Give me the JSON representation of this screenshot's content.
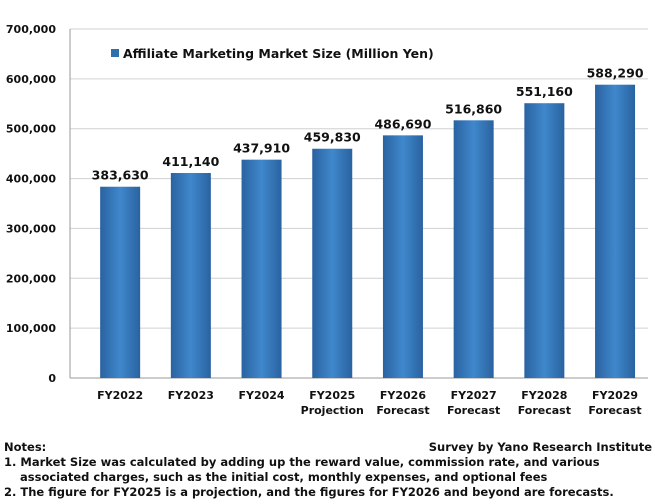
{
  "chart_data": {
    "type": "bar",
    "categories": [
      [
        "FY2022"
      ],
      [
        "FY2023"
      ],
      [
        "FY2024"
      ],
      [
        "FY2025",
        "Projection"
      ],
      [
        "FY2026",
        "Forecast"
      ],
      [
        "FY2027",
        "Forecast"
      ],
      [
        "FY2028",
        "Forecast"
      ],
      [
        "FY2029",
        "Forecast"
      ]
    ],
    "values": [
      383630,
      411140,
      437910,
      459830,
      486690,
      516860,
      551160,
      588290
    ],
    "value_labels": [
      "383,630",
      "411,140",
      "437,910",
      "459,830",
      "486,690",
      "516,860",
      "551,160",
      "588,290"
    ],
    "series": [
      {
        "name": "Affiliate Marketing Market Size (Million Yen)",
        "color": "#2f6fae"
      }
    ],
    "ylim": [
      0,
      700000
    ],
    "yticks": [
      0,
      100000,
      200000,
      300000,
      400000,
      500000,
      600000,
      700000
    ],
    "ytick_labels": [
      "0",
      "100,000",
      "200,000",
      "300,000",
      "400,000",
      "500,000",
      "600,000",
      "700,000"
    ],
    "grid": true,
    "legend": "top-left"
  },
  "notes": {
    "heading": "Notes:",
    "source": "Survey by Yano Research Institute",
    "items": [
      "1. Market Size was calculated by adding up the reward value, commission rate, and various",
      "associated charges, such as the initial cost, monthly expenses, and optional fees",
      "2. The figure for FY2025 is a projection, and the figures for FY2026 and beyond are forecasts."
    ]
  }
}
